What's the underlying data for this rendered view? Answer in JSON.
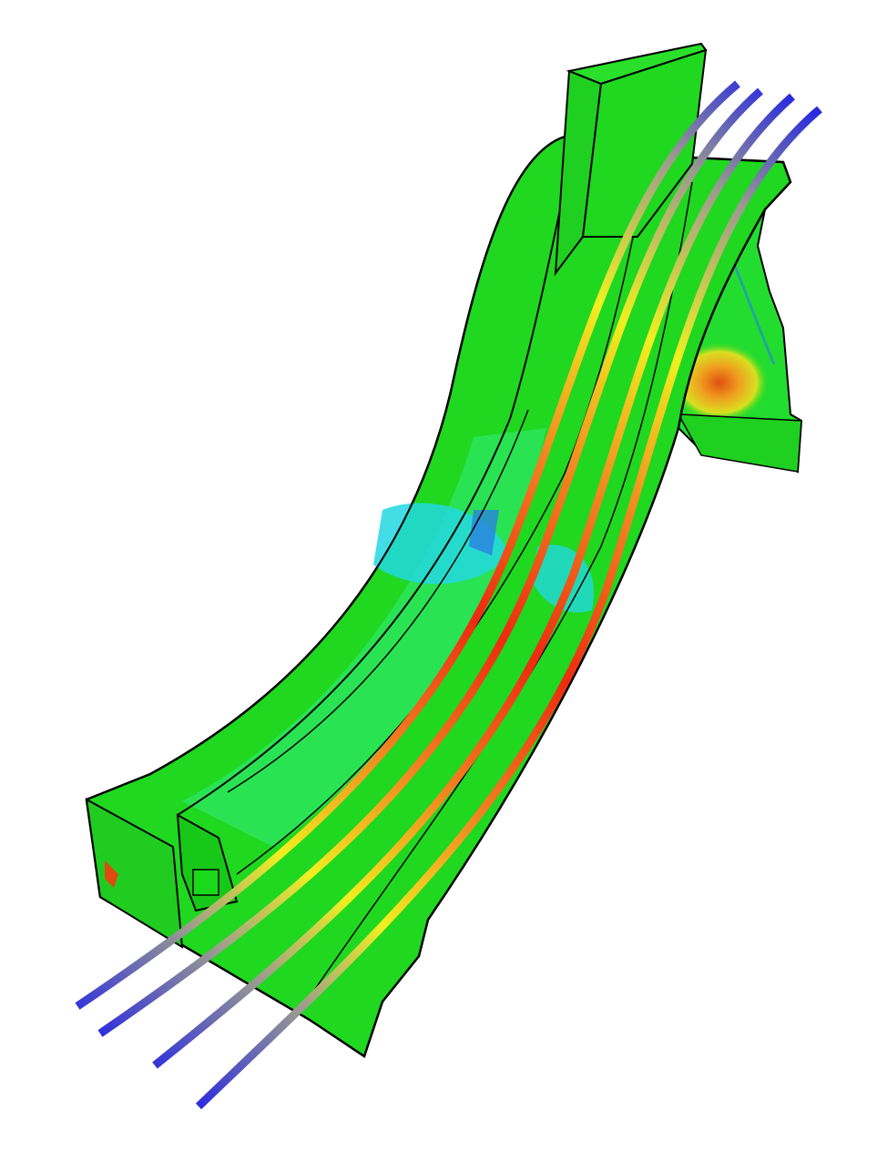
{
  "render": {
    "background": "#ffffff",
    "colors": {
      "body_green": "#1fd81f",
      "body_light_green": "#2ee86a",
      "body_cyan": "#22d8e0",
      "body_blue": "#2a7fe0",
      "hot_orange": "#f07820",
      "hot_red": "#e02010",
      "cable_blue": "#2a2ae0",
      "cable_yellow": "#f0f020",
      "cable_red": "#ee2a10",
      "outline": "#000000"
    },
    "cable_count": 4
  }
}
